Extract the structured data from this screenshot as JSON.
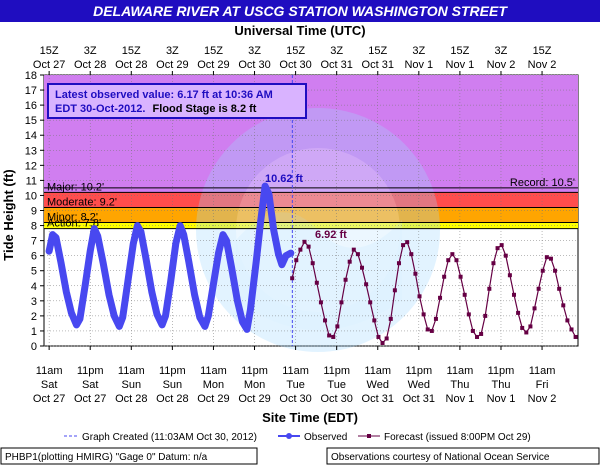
{
  "title": "DELAWARE RIVER AT USCG STATION WASHINGTON STREET",
  "top_axis_title": "Universal Time (UTC)",
  "bottom_axis_title": "Site Time (EDT)",
  "y_axis_title": "Tide Height (ft)",
  "info_box": {
    "line1": "Latest observed value: 6.17 ft at 10:36 AM",
    "line2_a": "EDT 30-Oct-2012.",
    "line2_b": "Flood Stage is 8.2 ft"
  },
  "annotations": {
    "peak_label": "10.62 ft",
    "latest_label": "6.92 ft"
  },
  "legend": {
    "created": "Graph Created (11:03AM Oct 30, 2012)",
    "observed": "Observed",
    "forecast": "Forecast (issued 8:00PM Oct 29)"
  },
  "footer": {
    "left": "PHBP1(plotting HMIRG) \"Gage 0\" Datum: n/a",
    "right": "Observations courtesy of National Ocean Service"
  },
  "colors": {
    "banner": "#1f0dc0",
    "plot_bg": "#d07ef0",
    "action": "#ffff00",
    "minor": "#ffa500",
    "moderate": "#ff4d4d",
    "major": "#bf66d9",
    "observed": "#4848f0",
    "forecast": "#660044",
    "info_border": "#1f0dc0",
    "info_text": "#1f0dc0"
  },
  "chart_data": {
    "type": "line",
    "ylabel": "Tide Height (ft)",
    "xlabel": "Site Time (EDT)",
    "ylim": [
      0,
      18
    ],
    "y_ticks": [
      "0",
      "1",
      "2",
      "3",
      "4",
      "5",
      "6",
      "7",
      "8",
      "9",
      "10",
      "11",
      "12",
      "13",
      "14",
      "15",
      "16",
      "17",
      "18"
    ],
    "x_hours_range": [
      0,
      127
    ],
    "top_ticks": [
      {
        "h": 0,
        "l1": "15Z",
        "l2": "Oct 27"
      },
      {
        "h": 12,
        "l1": "3Z",
        "l2": "Oct 28"
      },
      {
        "h": 24,
        "l1": "15Z",
        "l2": "Oct 28"
      },
      {
        "h": 36,
        "l1": "3Z",
        "l2": "Oct 29"
      },
      {
        "h": 48,
        "l1": "15Z",
        "l2": "Oct 29"
      },
      {
        "h": 60,
        "l1": "3Z",
        "l2": "Oct 30"
      },
      {
        "h": 72,
        "l1": "15Z",
        "l2": "Oct 30"
      },
      {
        "h": 84,
        "l1": "3Z",
        "l2": "Oct 31"
      },
      {
        "h": 96,
        "l1": "15Z",
        "l2": "Oct 31"
      },
      {
        "h": 108,
        "l1": "3Z",
        "l2": "Nov 1"
      },
      {
        "h": 120,
        "l1": "15Z",
        "l2": "Nov 1"
      },
      {
        "h": 132,
        "l1": "3Z",
        "l2": "Nov 2"
      },
      {
        "h": 144,
        "l1": "15Z",
        "l2": "Nov 2"
      }
    ],
    "bottom_ticks": [
      {
        "h": 0,
        "l1": "11am",
        "l2": "Sat",
        "l3": "Oct 27"
      },
      {
        "h": 12,
        "l1": "11pm",
        "l2": "Sat",
        "l3": "Oct 27"
      },
      {
        "h": 24,
        "l1": "11am",
        "l2": "Sun",
        "l3": "Oct 28"
      },
      {
        "h": 36,
        "l1": "11pm",
        "l2": "Sun",
        "l3": "Oct 28"
      },
      {
        "h": 48,
        "l1": "11am",
        "l2": "Mon",
        "l3": "Oct 29"
      },
      {
        "h": 60,
        "l1": "11pm",
        "l2": "Mon",
        "l3": "Oct 29"
      },
      {
        "h": 72,
        "l1": "11am",
        "l2": "Tue",
        "l3": "Oct 30"
      },
      {
        "h": 84,
        "l1": "11pm",
        "l2": "Tue",
        "l3": "Oct 30"
      },
      {
        "h": 96,
        "l1": "11am",
        "l2": "Wed",
        "l3": "Oct 31"
      },
      {
        "h": 108,
        "l1": "11pm",
        "l2": "Wed",
        "l3": "Oct 31"
      },
      {
        "h": 120,
        "l1": "11am",
        "l2": "Thu",
        "l3": "Nov 1"
      },
      {
        "h": 132,
        "l1": "11pm",
        "l2": "Thu",
        "l3": "Nov 1"
      },
      {
        "h": 144,
        "l1": "11am",
        "l2": "Fri",
        "l3": "Nov 2"
      }
    ],
    "flood_categories": [
      {
        "name": "Action",
        "label": "Action: 7.8'",
        "from": 7.8,
        "to": 8.2
      },
      {
        "name": "Minor",
        "label": "Minor: 8.2'",
        "from": 8.2,
        "to": 9.2
      },
      {
        "name": "Moderate",
        "label": "Moderate: 9.2'",
        "from": 9.2,
        "to": 10.2
      },
      {
        "name": "Major",
        "label": "Major: 10.2'",
        "from": 10.2,
        "to": 18
      }
    ],
    "record": {
      "label": "Record: 10.5'",
      "value": 10.5
    },
    "graph_created_h": 71.05,
    "series": [
      {
        "name": "Observed",
        "points": [
          [
            0,
            6.3
          ],
          [
            1,
            7.4
          ],
          [
            2,
            7.2
          ],
          [
            3.5,
            5.5
          ],
          [
            5,
            3.6
          ],
          [
            6.5,
            2.2
          ],
          [
            8,
            1.4
          ],
          [
            9,
            1.8
          ],
          [
            10.5,
            4.0
          ],
          [
            12,
            6.3
          ],
          [
            13.2,
            7.8
          ],
          [
            14.2,
            7.3
          ],
          [
            15.8,
            5.5
          ],
          [
            17.5,
            3.4
          ],
          [
            19,
            2.0
          ],
          [
            20.5,
            1.3
          ],
          [
            21.5,
            1.9
          ],
          [
            23,
            4.3
          ],
          [
            24.6,
            6.8
          ],
          [
            25.8,
            8.0
          ],
          [
            26.8,
            7.6
          ],
          [
            28.3,
            5.8
          ],
          [
            30,
            3.6
          ],
          [
            31.5,
            2.1
          ],
          [
            33,
            1.4
          ],
          [
            34,
            2.0
          ],
          [
            35.5,
            4.3
          ],
          [
            37,
            6.8
          ],
          [
            38.3,
            8.0
          ],
          [
            39.3,
            7.4
          ],
          [
            40.8,
            5.6
          ],
          [
            42.5,
            3.4
          ],
          [
            44,
            1.9
          ],
          [
            45.5,
            1.3
          ],
          [
            46.5,
            2.0
          ],
          [
            48,
            4.1
          ],
          [
            49.5,
            6.2
          ],
          [
            50.8,
            7.4
          ],
          [
            51.8,
            7.0
          ],
          [
            53.3,
            5.2
          ],
          [
            55,
            3.0
          ],
          [
            56.5,
            1.6
          ],
          [
            57.8,
            1.1
          ],
          [
            58.8,
            2.4
          ],
          [
            60.5,
            5.6
          ],
          [
            61.8,
            8.3
          ],
          [
            63.1,
            10.62
          ],
          [
            64.2,
            10.1
          ],
          [
            65.6,
            7.7
          ],
          [
            67,
            6.1
          ],
          [
            68,
            5.4
          ],
          [
            69.2,
            6.0
          ],
          [
            70.6,
            6.17
          ]
        ]
      },
      {
        "name": "Forecast (issued 8:00PM Oct 29)",
        "points": [
          [
            71.0,
            4.5
          ],
          [
            72.2,
            5.7
          ],
          [
            73.4,
            6.4
          ],
          [
            74.6,
            6.92
          ],
          [
            75.8,
            6.6
          ],
          [
            77,
            5.5
          ],
          [
            78.2,
            4.2
          ],
          [
            79.4,
            2.9
          ],
          [
            80.6,
            1.7
          ],
          [
            81.8,
            0.7
          ],
          [
            83,
            0.6
          ],
          [
            84.2,
            1.3
          ],
          [
            85.4,
            2.9
          ],
          [
            86.6,
            4.4
          ],
          [
            87.8,
            5.6
          ],
          [
            89,
            6.4
          ],
          [
            90.2,
            6.1
          ],
          [
            91.4,
            5.2
          ],
          [
            92.6,
            4.1
          ],
          [
            93.8,
            2.9
          ],
          [
            95,
            1.7
          ],
          [
            96.2,
            0.6
          ],
          [
            97.4,
            0.2
          ],
          [
            98.6,
            0.5
          ],
          [
            99.8,
            1.8
          ],
          [
            101,
            3.7
          ],
          [
            102.2,
            5.5
          ],
          [
            103.4,
            6.7
          ],
          [
            104.6,
            6.9
          ],
          [
            105.8,
            6.1
          ],
          [
            107,
            4.8
          ],
          [
            108.2,
            3.3
          ],
          [
            109.4,
            2.1
          ],
          [
            110.6,
            1.1
          ],
          [
            111.8,
            1.0
          ],
          [
            113,
            1.8
          ],
          [
            114.2,
            3.2
          ],
          [
            115.4,
            4.6
          ],
          [
            116.6,
            5.7
          ],
          [
            117.8,
            6.1
          ],
          [
            119,
            5.7
          ],
          [
            120.2,
            4.6
          ],
          [
            121.4,
            3.4
          ],
          [
            122.6,
            2.1
          ],
          [
            123.8,
            1.0
          ],
          [
            125,
            0.6
          ],
          [
            126.2,
            0.8
          ],
          [
            127.4,
            2.0
          ],
          [
            128.6,
            3.8
          ],
          [
            129.8,
            5.5
          ],
          [
            131,
            6.5
          ],
          [
            132.2,
            6.7
          ],
          [
            133.4,
            6.0
          ],
          [
            134.6,
            4.7
          ],
          [
            135.8,
            3.4
          ],
          [
            137,
            2.2
          ],
          [
            138.2,
            1.2
          ],
          [
            139.4,
            0.9
          ],
          [
            140.6,
            1.3
          ],
          [
            141.8,
            2.5
          ],
          [
            143,
            3.8
          ],
          [
            144.2,
            5.0
          ],
          [
            145.4,
            5.9
          ],
          [
            146.6,
            5.8
          ],
          [
            147.8,
            5.0
          ],
          [
            149,
            3.8
          ],
          [
            150.2,
            2.7
          ],
          [
            151.4,
            1.7
          ],
          [
            152.6,
            1.1
          ],
          [
            153.8,
            0.6
          ]
        ]
      }
    ]
  }
}
